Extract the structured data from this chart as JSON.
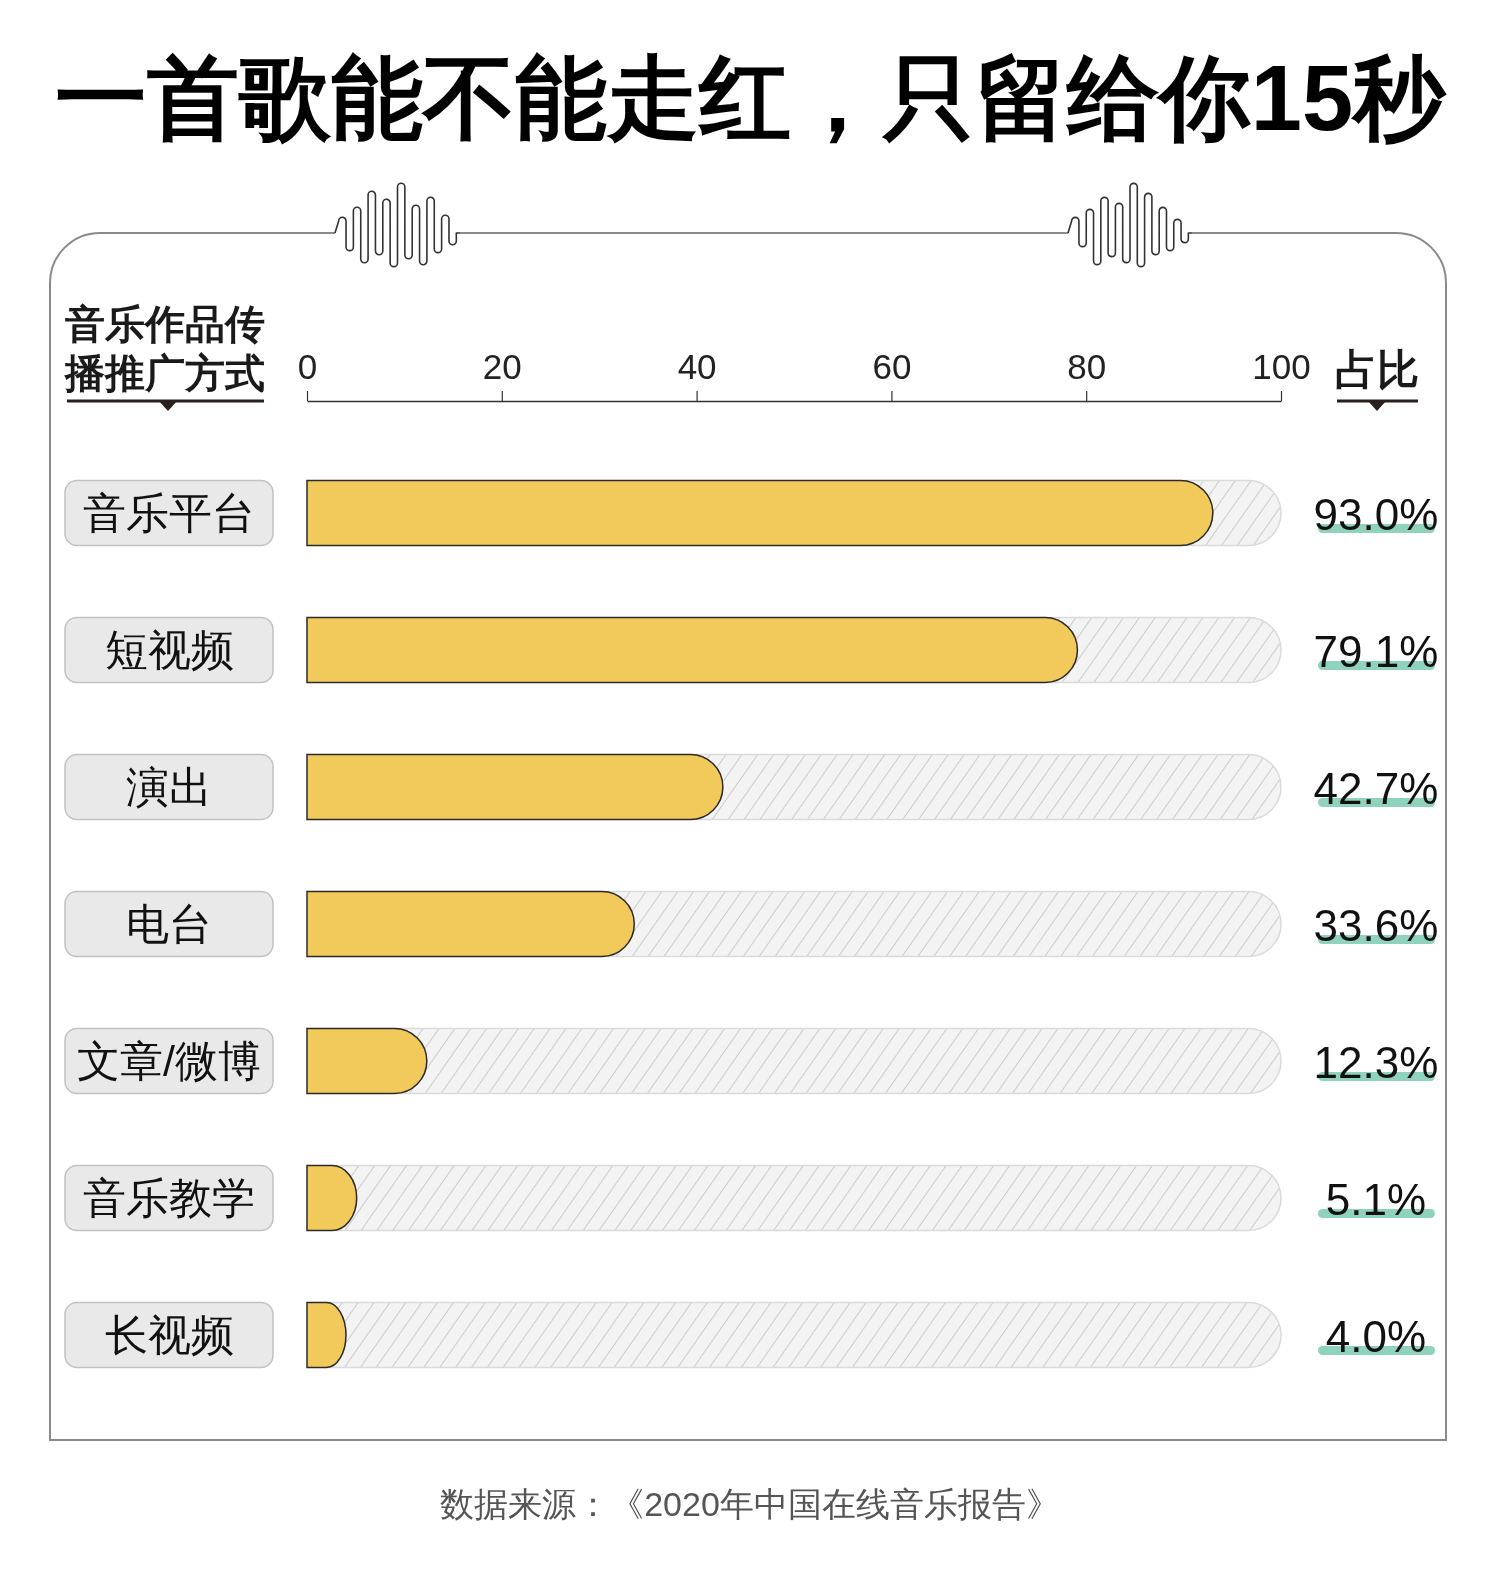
{
  "chart_data": {
    "type": "bar",
    "orientation": "horizontal",
    "title": "一首歌能不能走红，只留给你15秒",
    "ylabel": "音乐作品传播推广方式",
    "xlabel": "占比",
    "categories": [
      "音乐平台",
      "短视频",
      "演出",
      "电台",
      "文章/微博",
      "音乐教学",
      "长视频"
    ],
    "values": [
      93.0,
      79.1,
      42.7,
      33.6,
      12.3,
      5.1,
      4.0
    ],
    "value_labels": [
      "93.0%",
      "79.1%",
      "42.7%",
      "33.6%",
      "12.3%",
      "5.1%",
      "4.0%"
    ],
    "color": "#f2ca5b",
    "xlim": [
      0,
      100
    ],
    "xticks": [
      0,
      20,
      40,
      60,
      80,
      100
    ],
    "annotations": [
      "数据来源：《2020年中国在线音乐报告》"
    ]
  }
}
